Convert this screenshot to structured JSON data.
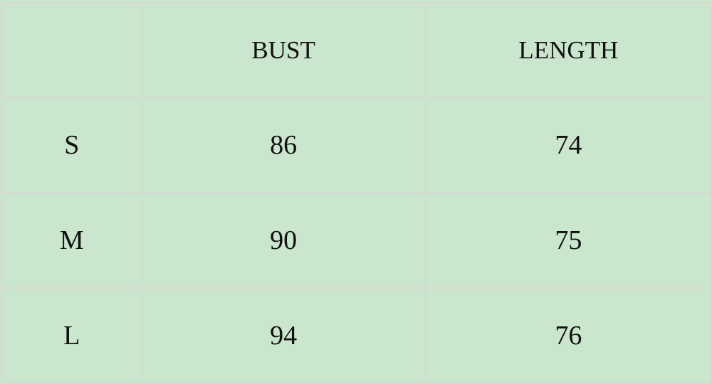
{
  "table": {
    "headers": [
      "",
      "BUST",
      "LENGTH"
    ],
    "rows": [
      {
        "size": "S",
        "bust": "86",
        "length": "74"
      },
      {
        "size": "M",
        "bust": "90",
        "length": "75"
      },
      {
        "size": "L",
        "bust": "94",
        "length": "76"
      }
    ]
  },
  "colors": {
    "background": "#cae6cc",
    "border": "#d6d8d2",
    "text": "#111111"
  }
}
